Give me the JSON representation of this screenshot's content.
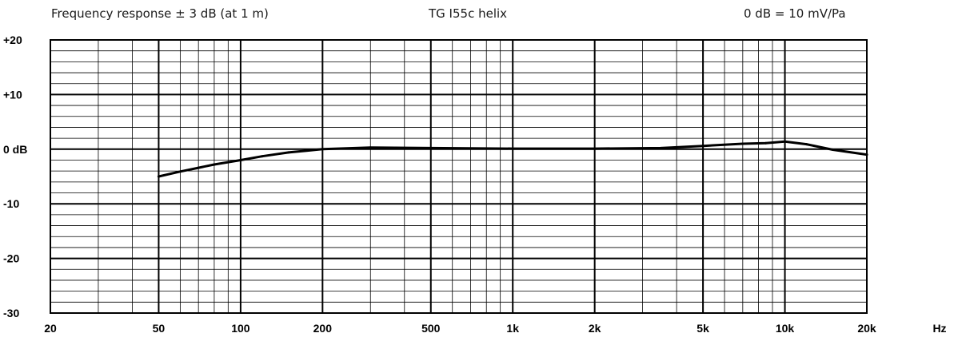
{
  "header": {
    "left": "Frequency response ± 3 dB (at 1 m)",
    "center": "TG I55c helix",
    "right": "0 dB =  10 mV/Pa"
  },
  "chart_data": {
    "type": "line",
    "title": "TG I55c helix",
    "xscale": "log",
    "xlim": [
      20,
      20000
    ],
    "ylim": [
      -30,
      20
    ],
    "grid": true,
    "x_tick_labels": [
      "20",
      "50",
      "100",
      "200",
      "500",
      "1k",
      "2k",
      "5k",
      "10k",
      "20k"
    ],
    "x_tick_values": [
      20,
      50,
      100,
      200,
      500,
      1000,
      2000,
      5000,
      10000,
      20000
    ],
    "x_unit_label": "Hz",
    "y_tick_labels": [
      "+20",
      "+10",
      "0 dB",
      "-10",
      "-20",
      "-30"
    ],
    "y_tick_values": [
      20,
      10,
      0,
      -10,
      -20,
      -30
    ],
    "series": [
      {
        "x": [
          50,
          60,
          70,
          80,
          100,
          120,
          150,
          200,
          300,
          500,
          1000,
          2000,
          3500,
          5000,
          7000,
          8500,
          10000,
          12000,
          15000,
          20000
        ],
        "y": [
          -5.0,
          -4.1,
          -3.4,
          -2.8,
          -2.0,
          -1.3,
          -0.6,
          0.0,
          0.3,
          0.2,
          0.1,
          0.1,
          0.2,
          0.6,
          1.0,
          1.1,
          1.4,
          0.9,
          -0.1,
          -1.0
        ]
      }
    ]
  }
}
